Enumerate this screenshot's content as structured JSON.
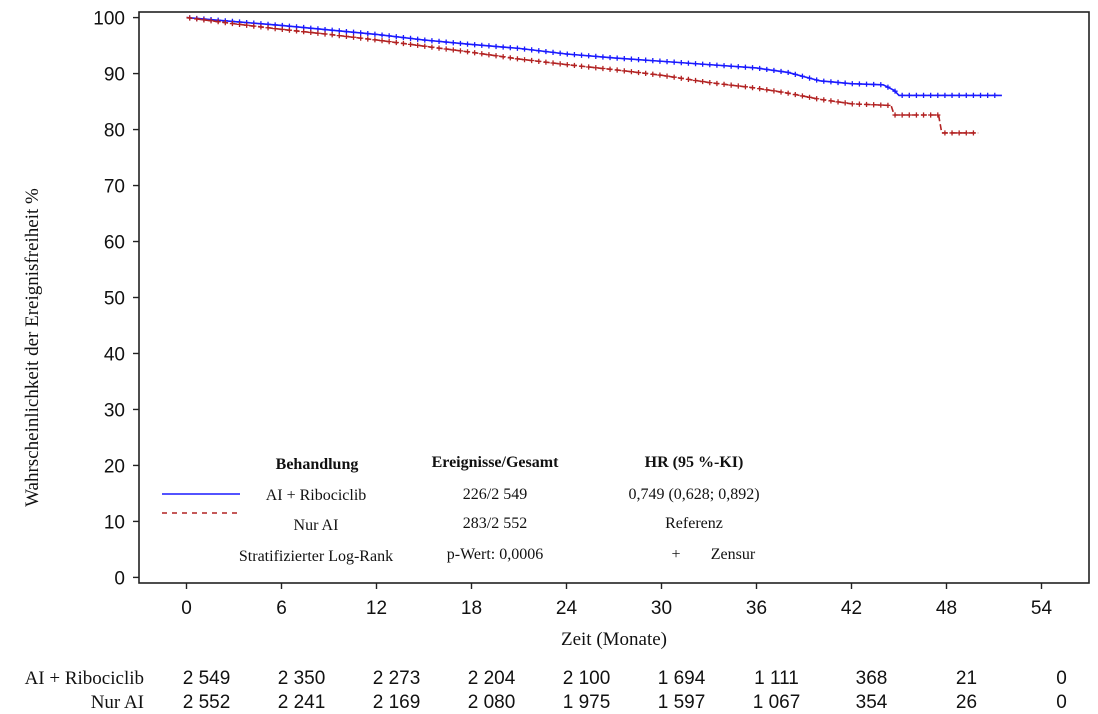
{
  "chart_data": {
    "type": "line",
    "title": "",
    "xlabel": "Zeit (Monate)",
    "ylabel": "Wahrscheinlichkeit der Ereignisfreiheit %",
    "xlim": [
      -3,
      57
    ],
    "ylim": [
      -1,
      101
    ],
    "x_ticks": [
      0,
      6,
      12,
      18,
      24,
      30,
      36,
      42,
      48,
      54
    ],
    "y_ticks": [
      0,
      10,
      20,
      30,
      40,
      50,
      60,
      70,
      80,
      90,
      100
    ],
    "grid": false,
    "series": [
      {
        "name": "AI + Ribociclib",
        "color": "#1a1aff",
        "style": "solid",
        "x": [
          0,
          3,
          6,
          9,
          12,
          15,
          18,
          21,
          24,
          27,
          30,
          33,
          36,
          38,
          40,
          42,
          44,
          44.7,
          45,
          48,
          51.5
        ],
        "y": [
          100,
          99.3,
          98.6,
          97.8,
          97.0,
          96.0,
          95.2,
          94.5,
          93.5,
          92.8,
          92.2,
          91.6,
          91.0,
          90.2,
          88.7,
          88.2,
          88.0,
          87.0,
          86.1,
          86.1,
          86.1
        ]
      },
      {
        "name": "Nur AI",
        "color": "#b22222",
        "style": "dashed",
        "x": [
          0,
          3,
          6,
          9,
          12,
          15,
          18,
          21,
          24,
          27,
          30,
          33,
          36,
          38,
          40,
          42,
          44.5,
          44.7,
          47.5,
          47.7,
          50
        ],
        "y": [
          100,
          98.9,
          97.9,
          97.0,
          96.0,
          94.9,
          93.8,
          92.6,
          91.6,
          90.7,
          89.7,
          88.4,
          87.4,
          86.5,
          85.4,
          84.6,
          84.3,
          82.6,
          82.6,
          79.4,
          79.4
        ]
      }
    ],
    "legend": {
      "position": "bottom-left",
      "header": {
        "treatment": "Behandlung",
        "events": "Ereignisse/Gesamt",
        "hr": "HR (95 %-KI)"
      },
      "rows": [
        {
          "label": "AI + Ribociclib",
          "events": "226/2 549",
          "hr": "0,749 (0,628; 0,892)",
          "color": "#1a1aff",
          "style": "solid"
        },
        {
          "label": "Nur AI",
          "events": "283/2 552",
          "hr": "Referenz",
          "color": "#b22222",
          "style": "dashed"
        }
      ],
      "footer": {
        "test": "Stratifizierter Log-Rank",
        "pvalue": "p-Wert: 0,0006",
        "censor_mark": "+",
        "censor_label": "Zensur"
      }
    },
    "risk_table": {
      "groups": [
        {
          "label": "AI + Ribociclib",
          "values": [
            "2 549",
            "2 350",
            "2 273",
            "2 204",
            "2 100",
            "1 694",
            "1 111",
            "368",
            "21",
            "0"
          ]
        },
        {
          "label": "Nur AI",
          "values": [
            "2 552",
            "2 241",
            "2 169",
            "2 080",
            "1 975",
            "1 597",
            "1 067",
            "354",
            "26",
            "0"
          ]
        }
      ]
    }
  }
}
